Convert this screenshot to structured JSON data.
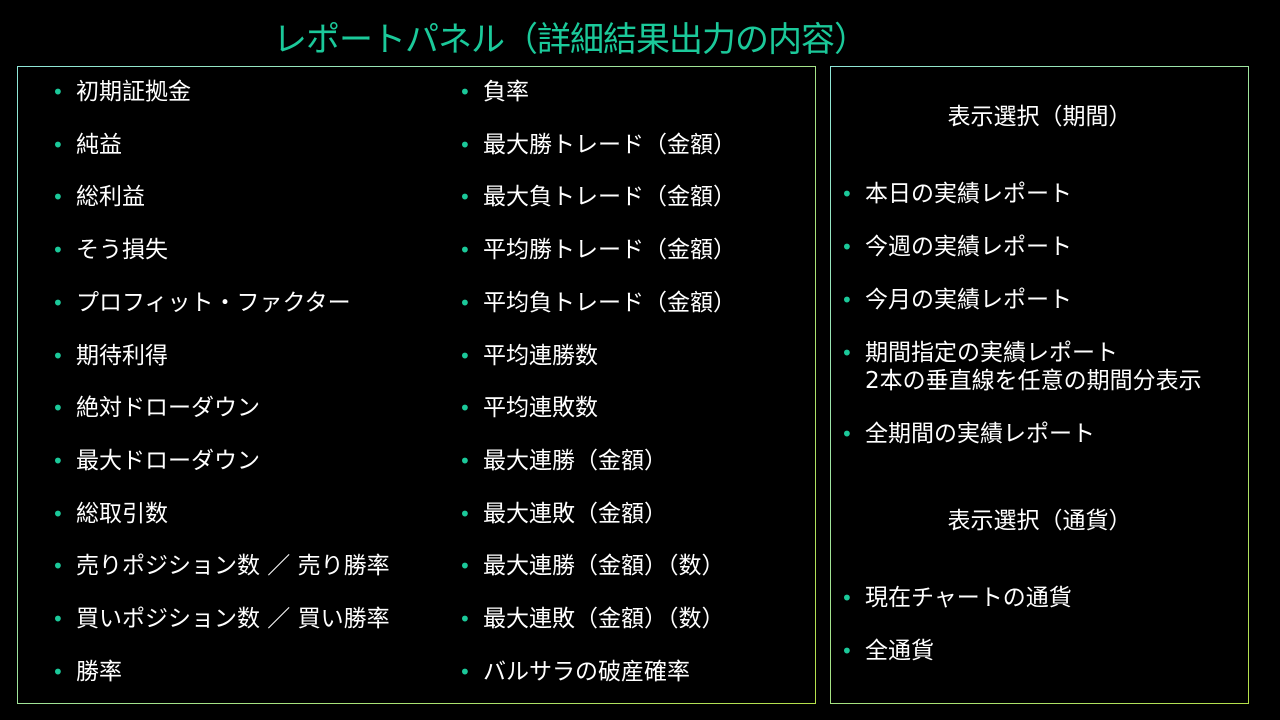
{
  "title": "レポートパネル（詳細結果出力の内容）",
  "left_col1": [
    "初期証拠金",
    "純益",
    "総利益",
    "そう損失",
    "プロフィット・ファクター",
    "期待利得",
    "絶対ドローダウン",
    "最大ドローダウン",
    "総取引数",
    "売りポジション数 ／ 売り勝率",
    "買いポジション数 ／ 買い勝率",
    "勝率"
  ],
  "left_col2": [
    "負率",
    "最大勝トレード（金額）",
    "最大負トレード（金額）",
    "平均勝トレード（金額）",
    "平均負トレード（金額）",
    "平均連勝数",
    "平均連敗数",
    "最大連勝（金額）",
    "最大連敗（金額）",
    "最大連勝（金額）（数）",
    "最大連敗（金額）（数）",
    "バルサラの破産確率"
  ],
  "period": {
    "heading": "表示選択（期間）",
    "items": [
      "本日の実績レポート",
      "今週の実績レポート",
      "今月の実績レポート",
      "期間指定の実績レポート",
      "全期間の実績レポート"
    ],
    "note": "2本の垂直線を任意の期間分表示"
  },
  "currency": {
    "heading": "表示選択（通貨）",
    "items": [
      "現在チャートの通貨",
      "全通貨"
    ]
  },
  "colors": {
    "accent": "#1bc99a",
    "border": "#b5e04a",
    "background": "#000000"
  }
}
